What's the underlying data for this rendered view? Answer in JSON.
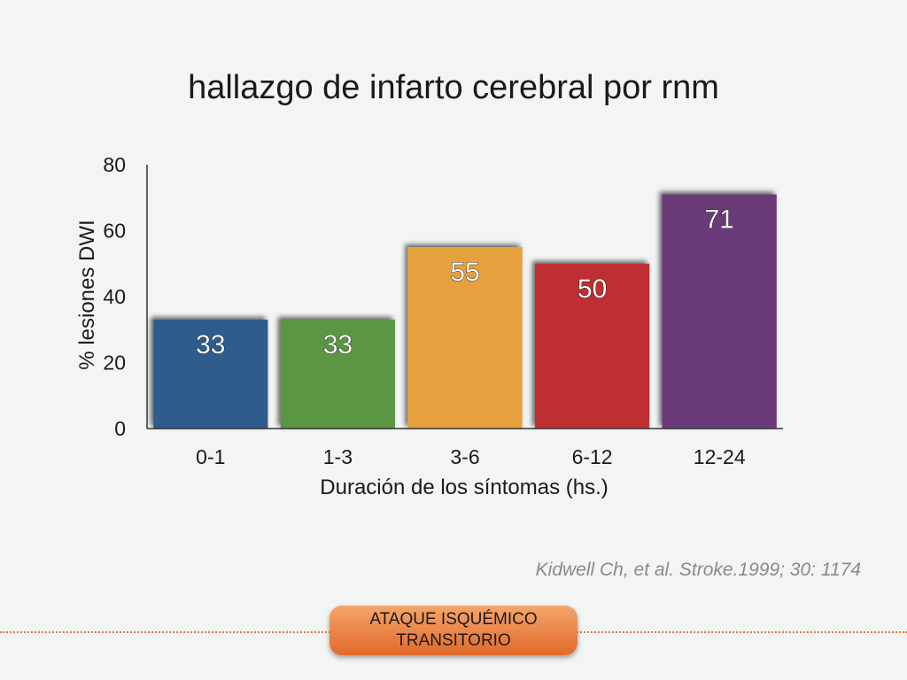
{
  "slide": {
    "title": "hallazgo de infarto cerebral por rnm",
    "citation": "Kidwell Ch, et al. Stroke.1999; 30: 1174",
    "footer_line1": "ATAQUE ISQUÉMICO",
    "footer_line2": "TRANSITORIO"
  },
  "chart_data": {
    "type": "bar",
    "title": "",
    "xlabel": "Duración de los síntomas (hs.)",
    "ylabel": "% lesiones DWI",
    "ylim": [
      0,
      80
    ],
    "yticks": [
      0,
      20,
      40,
      60,
      80
    ],
    "categories": [
      "0-1",
      "1-3",
      "3-6",
      "6-12",
      "12-24"
    ],
    "values": [
      33,
      33,
      55,
      50,
      71
    ],
    "data_labels": [
      "33",
      "33",
      "55",
      "50",
      "71"
    ],
    "colors": [
      "#2f5b8c",
      "#5b9645",
      "#e6a03c",
      "#bf2f33",
      "#6b3a78"
    ],
    "grid": false,
    "legend": "none"
  }
}
